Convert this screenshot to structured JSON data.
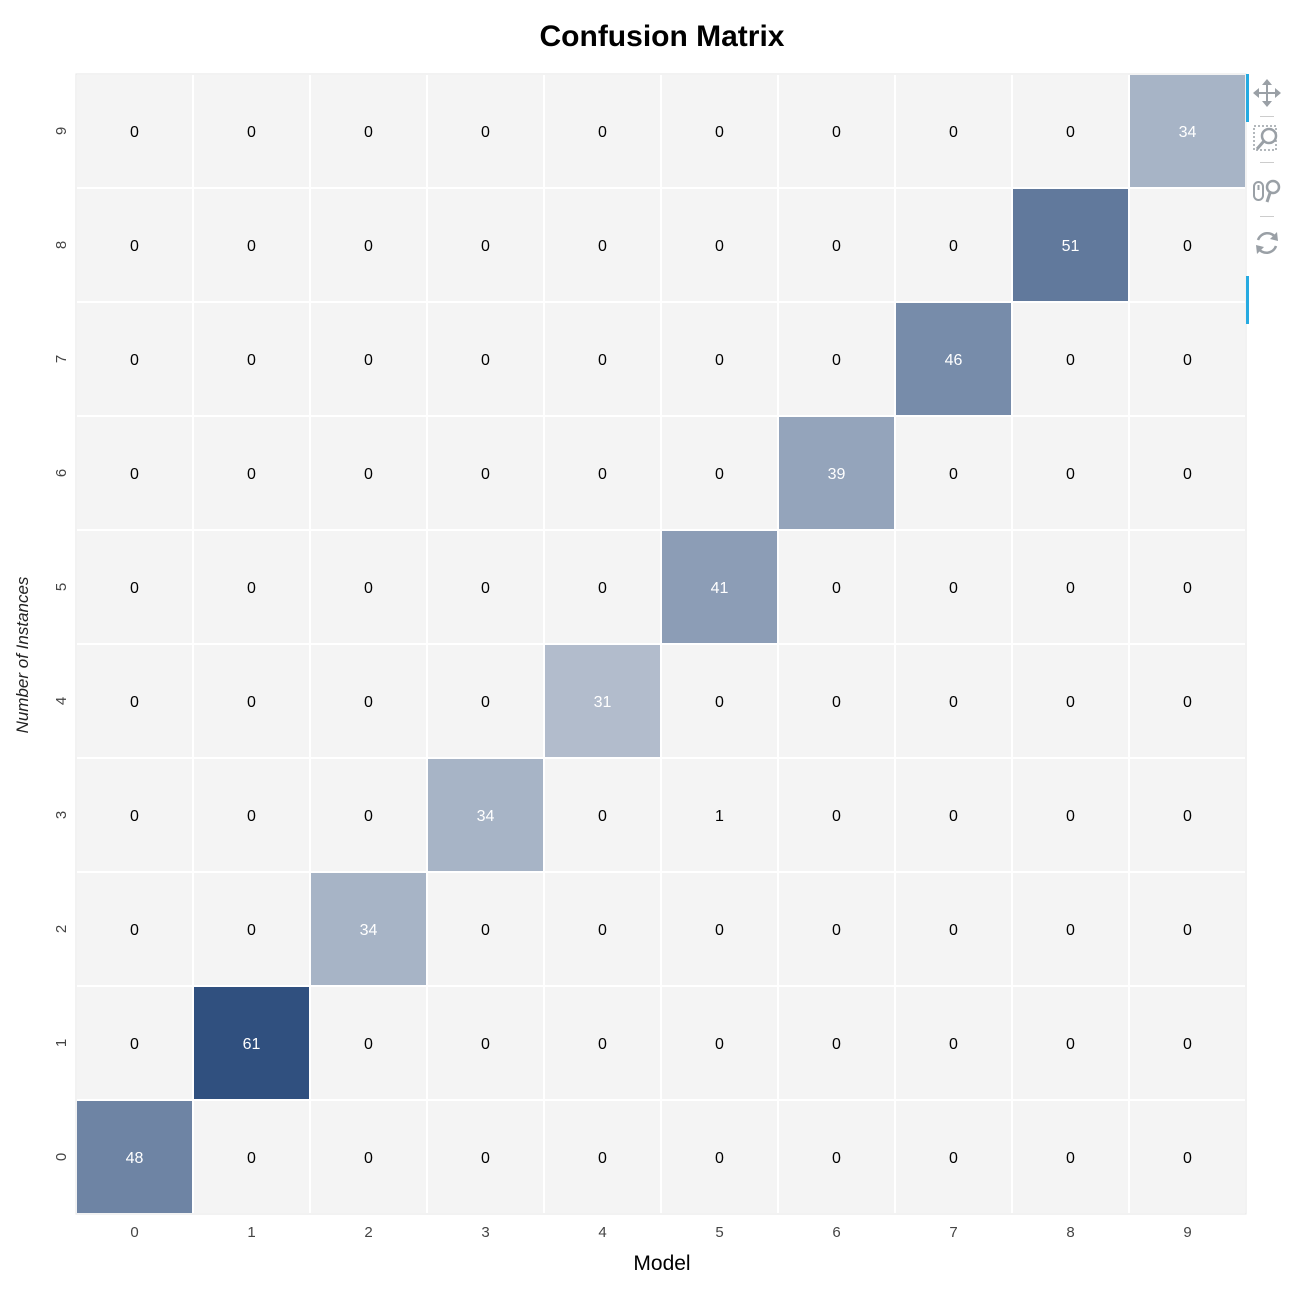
{
  "chart_data": {
    "type": "heatmap",
    "title": "Confusion Matrix",
    "xlabel": "Model",
    "ylabel": "Number of Instances",
    "x_categories": [
      "0",
      "1",
      "2",
      "3",
      "4",
      "5",
      "6",
      "7",
      "8",
      "9"
    ],
    "y_categories": [
      "0",
      "1",
      "2",
      "3",
      "4",
      "5",
      "6",
      "7",
      "8",
      "9"
    ],
    "matrix": [
      [
        48,
        0,
        0,
        0,
        0,
        0,
        0,
        0,
        0,
        0
      ],
      [
        0,
        61,
        0,
        0,
        0,
        0,
        0,
        0,
        0,
        0
      ],
      [
        0,
        0,
        34,
        0,
        0,
        0,
        0,
        0,
        0,
        0
      ],
      [
        0,
        0,
        0,
        34,
        0,
        1,
        0,
        0,
        0,
        0
      ],
      [
        0,
        0,
        0,
        0,
        31,
        0,
        0,
        0,
        0,
        0
      ],
      [
        0,
        0,
        0,
        0,
        0,
        41,
        0,
        0,
        0,
        0
      ],
      [
        0,
        0,
        0,
        0,
        0,
        0,
        39,
        0,
        0,
        0
      ],
      [
        0,
        0,
        0,
        0,
        0,
        0,
        0,
        46,
        0,
        0
      ],
      [
        0,
        0,
        0,
        0,
        0,
        0,
        0,
        0,
        51,
        0
      ],
      [
        0,
        0,
        0,
        0,
        0,
        0,
        0,
        0,
        0,
        34
      ]
    ],
    "colors": {
      "low": "#f4f4f4",
      "high": "#30507f",
      "dark_text": "#000000",
      "light_text": "#ffffff"
    },
    "grid": true
  },
  "toolbar": {
    "tools": [
      {
        "name": "pan-tool",
        "icon": "move-arrows-icon"
      },
      {
        "name": "box-zoom-tool",
        "icon": "box-zoom-icon"
      },
      {
        "name": "wheel-zoom-tool",
        "icon": "wheel-zoom-icon"
      },
      {
        "name": "reset-tool",
        "icon": "reset-icon"
      }
    ]
  }
}
